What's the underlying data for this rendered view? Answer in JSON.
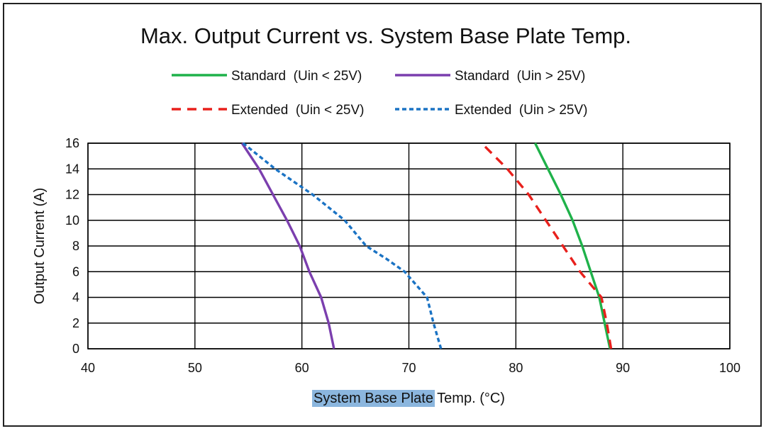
{
  "chart_data": {
    "type": "line",
    "title": "Max. Output Current vs. System Base Plate Temp.",
    "xlabel_highlight": "System Base Plate",
    "xlabel_rest": " Temp. (°C)",
    "ylabel": "Output Current (A)",
    "xlim": [
      40,
      100
    ],
    "ylim": [
      0,
      16
    ],
    "x_ticks": [
      40,
      50,
      60,
      70,
      80,
      90,
      100
    ],
    "y_ticks": [
      0,
      2,
      4,
      6,
      8,
      10,
      12,
      14,
      16
    ],
    "grid": true,
    "legend_position": "top",
    "series": [
      {
        "name": "Standard  (Uin < 25V)",
        "color": "#1fb24a",
        "dash": "solid",
        "points": [
          [
            88.8,
            0
          ],
          [
            88.3,
            2
          ],
          [
            87.8,
            4
          ],
          [
            87.0,
            6
          ],
          [
            86.2,
            8
          ],
          [
            85.3,
            10
          ],
          [
            84.2,
            12
          ],
          [
            83.0,
            14
          ],
          [
            81.8,
            16
          ]
        ]
      },
      {
        "name": "Standard  (Uin > 25V)",
        "color": "#7b3fae",
        "dash": "solid",
        "points": [
          [
            63.0,
            0
          ],
          [
            62.5,
            2
          ],
          [
            61.8,
            4
          ],
          [
            60.7,
            6
          ],
          [
            59.8,
            8
          ],
          [
            58.6,
            10
          ],
          [
            57.3,
            12
          ],
          [
            56.0,
            14
          ],
          [
            54.4,
            16
          ]
        ]
      },
      {
        "name": "Extended  (Uin < 25V)",
        "color": "#e8201c",
        "dash": "dashed",
        "points": [
          [
            88.9,
            0
          ],
          [
            88.5,
            2
          ],
          [
            88.0,
            4
          ],
          [
            86.0,
            6
          ],
          [
            84.4,
            8
          ],
          [
            82.8,
            10
          ],
          [
            81.2,
            12
          ],
          [
            79.2,
            14
          ],
          [
            76.8,
            16
          ]
        ]
      },
      {
        "name": "Extended  (Uin > 25V)",
        "color": "#1b73c4",
        "dash": "dotted",
        "points": [
          [
            73.0,
            0
          ],
          [
            72.3,
            2
          ],
          [
            71.7,
            4
          ],
          [
            69.6,
            6
          ],
          [
            67.9,
            7
          ],
          [
            66.0,
            8
          ],
          [
            64.0,
            10
          ],
          [
            61.0,
            12
          ],
          [
            57.5,
            14
          ],
          [
            54.5,
            16
          ]
        ]
      }
    ]
  }
}
